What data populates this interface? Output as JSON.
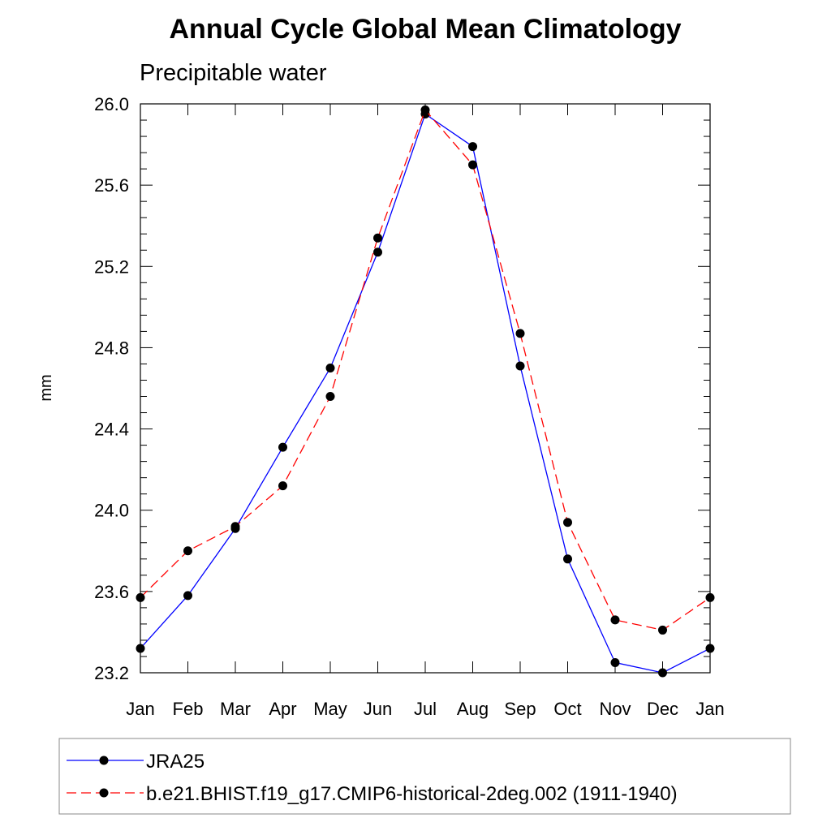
{
  "chart_data": {
    "type": "line",
    "title": "Annual Cycle Global Mean Climatology",
    "subtitle": "Precipitable water",
    "xlabel": "",
    "ylabel": "mm",
    "categories": [
      "Jan",
      "Feb",
      "Mar",
      "Apr",
      "May",
      "Jun",
      "Jul",
      "Aug",
      "Sep",
      "Oct",
      "Nov",
      "Dec",
      "Jan"
    ],
    "ylim": [
      23.2,
      26.0
    ],
    "yticks": [
      "26.0",
      "25.6",
      "25.2",
      "24.8",
      "24.4",
      "24.0",
      "23.6",
      "23.2"
    ],
    "grid": false,
    "legend_position": "bottom",
    "series": [
      {
        "name": "JRA25",
        "color": "#0000ff",
        "line_style": "solid",
        "marker": "filled-circle",
        "values": [
          23.32,
          23.58,
          23.91,
          24.31,
          24.7,
          25.27,
          25.95,
          25.79,
          24.71,
          23.76,
          23.25,
          23.2,
          23.32
        ]
      },
      {
        "name": "b.e21.BHIST.f19_g17.CMIP6-historical-2deg.002 (1911-1940)",
        "color": "#ff0000",
        "line_style": "dashed",
        "marker": "filled-circle",
        "values": [
          23.57,
          23.8,
          23.92,
          24.12,
          24.56,
          25.34,
          25.97,
          25.7,
          24.87,
          23.94,
          23.46,
          23.41,
          23.57
        ]
      }
    ]
  }
}
